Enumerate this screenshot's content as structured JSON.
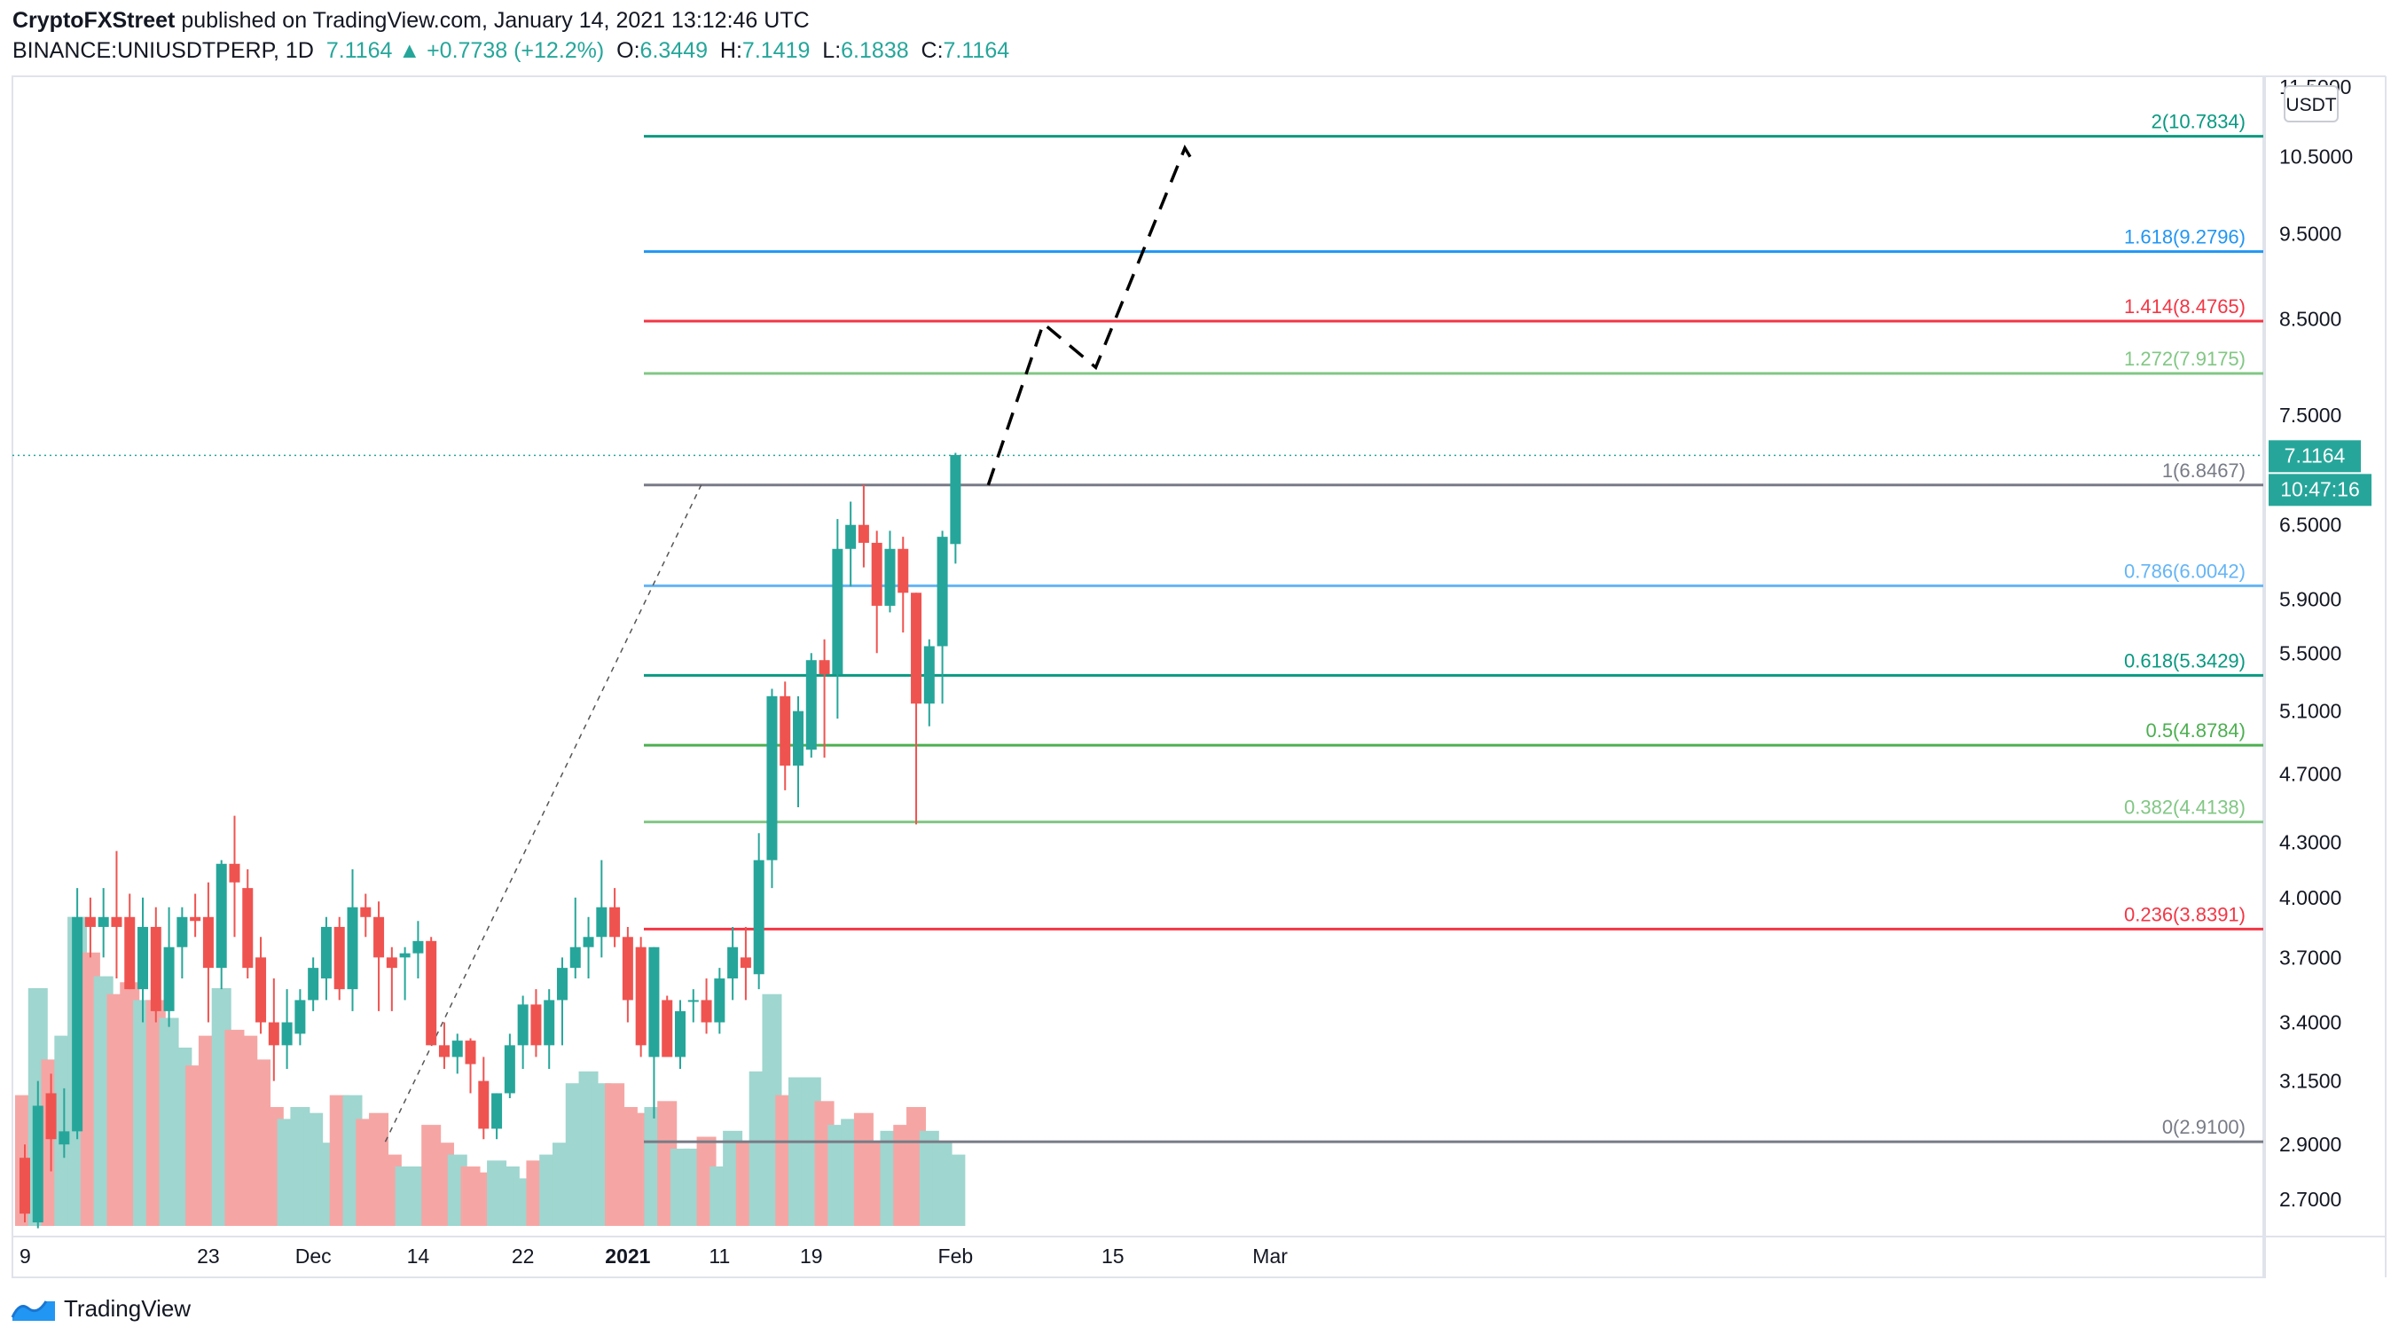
{
  "header": {
    "publisher": "CryptoFXStreet",
    "published_text": " published on TradingView.com, January 14, 2021 13:12:46 UTC",
    "symbol": "BINANCE:UNIUSDTPERP, 1D",
    "last": "7.1164",
    "change": "+0.7738 (+12.2%)",
    "o_label": "O:",
    "o_value": "6.3449",
    "h_label": "H:",
    "h_value": "7.1419",
    "l_label": "L:",
    "l_value": "6.1838",
    "c_label": "C:",
    "c_value": "7.1164"
  },
  "axis": {
    "currency": "USDT",
    "price_ticks": [
      "11.5000",
      "10.5000",
      "9.5000",
      "8.5000",
      "7.5000",
      "6.5000",
      "5.9000",
      "5.5000",
      "5.1000",
      "4.7000",
      "4.3000",
      "4.0000",
      "3.7000",
      "3.4000",
      "3.1500",
      "2.9000",
      "2.7000"
    ],
    "time_ticks": [
      "9",
      "23",
      "Dec",
      "14",
      "22",
      "2021",
      "11",
      "19",
      "Feb",
      "15",
      "Mar"
    ],
    "last_price_label": "7.1164",
    "countdown_label": "10:47:16"
  },
  "footer": {
    "brand": "TradingView"
  },
  "colors": {
    "up": "#26a69a",
    "down": "#ef5350",
    "vol_up": "#9fd6cf",
    "vol_down": "#f5a6a4",
    "grey": "#787b86",
    "blue": "#2196f3",
    "red": "#f23645",
    "lightgreen": "#81c784",
    "green": "#4caf50",
    "teal": "#089981"
  },
  "chart_data": {
    "type": "candlestick",
    "price_scale": "log",
    "ylim": [
      2.6,
      11.6
    ],
    "fib_levels": [
      {
        "label": "2(10.7834)",
        "ratio": "2",
        "price": 10.7834,
        "color": "#089981"
      },
      {
        "label": "1.618(9.2796)",
        "ratio": "1.618",
        "price": 9.2796,
        "color": "#2196f3"
      },
      {
        "label": "1.414(8.4765)",
        "ratio": "1.414",
        "price": 8.4765,
        "color": "#f23645"
      },
      {
        "label": "1.272(7.9175)",
        "ratio": "1.272",
        "price": 7.9175,
        "color": "#81c784"
      },
      {
        "label": "1(6.8467)",
        "ratio": "1",
        "price": 6.8467,
        "color": "#787b86"
      },
      {
        "label": "0.786(6.0042)",
        "ratio": "0.786",
        "price": 6.0042,
        "color": "#64b5f6"
      },
      {
        "label": "0.618(5.3429)",
        "ratio": "0.618",
        "price": 5.3429,
        "color": "#089981"
      },
      {
        "label": "0.5(4.8784)",
        "ratio": "0.5",
        "price": 4.8784,
        "color": "#4caf50"
      },
      {
        "label": "0.382(4.4138)",
        "ratio": "0.382",
        "price": 4.4138,
        "color": "#81c784"
      },
      {
        "label": "0.236(3.8391)",
        "ratio": "0.236",
        "price": 3.8391,
        "color": "#f23645"
      },
      {
        "label": "0(2.9100)",
        "ratio": "0",
        "price": 2.91,
        "color": "#787b86"
      }
    ],
    "candles": [
      {
        "o": 2.85,
        "h": 2.9,
        "l": 2.62,
        "c": 2.65
      },
      {
        "o": 2.62,
        "h": 3.15,
        "l": 2.6,
        "c": 3.05
      },
      {
        "o": 3.1,
        "h": 3.18,
        "l": 2.8,
        "c": 2.92
      },
      {
        "o": 2.9,
        "h": 3.12,
        "l": 2.85,
        "c": 2.95
      },
      {
        "o": 2.95,
        "h": 4.05,
        "l": 2.92,
        "c": 3.9
      },
      {
        "o": 3.9,
        "h": 4.0,
        "l": 3.7,
        "c": 3.85
      },
      {
        "o": 3.85,
        "h": 4.05,
        "l": 3.7,
        "c": 3.9
      },
      {
        "o": 3.9,
        "h": 4.25,
        "l": 3.6,
        "c": 3.85
      },
      {
        "o": 3.9,
        "h": 4.02,
        "l": 3.55,
        "c": 3.55
      },
      {
        "o": 3.55,
        "h": 4.0,
        "l": 3.4,
        "c": 3.85
      },
      {
        "o": 3.85,
        "h": 3.95,
        "l": 3.4,
        "c": 3.45
      },
      {
        "o": 3.45,
        "h": 3.95,
        "l": 3.38,
        "c": 3.75
      },
      {
        "o": 3.75,
        "h": 3.95,
        "l": 3.6,
        "c": 3.9
      },
      {
        "o": 3.9,
        "h": 4.02,
        "l": 3.8,
        "c": 3.88
      },
      {
        "o": 3.9,
        "h": 4.08,
        "l": 3.4,
        "c": 3.65
      },
      {
        "o": 3.65,
        "h": 4.2,
        "l": 3.55,
        "c": 4.18
      },
      {
        "o": 4.18,
        "h": 4.45,
        "l": 3.8,
        "c": 4.08
      },
      {
        "o": 4.05,
        "h": 4.15,
        "l": 3.6,
        "c": 3.65
      },
      {
        "o": 3.7,
        "h": 3.8,
        "l": 3.35,
        "c": 3.4
      },
      {
        "o": 3.4,
        "h": 3.6,
        "l": 3.15,
        "c": 3.3
      },
      {
        "o": 3.3,
        "h": 3.55,
        "l": 3.2,
        "c": 3.4
      },
      {
        "o": 3.35,
        "h": 3.55,
        "l": 3.3,
        "c": 3.5
      },
      {
        "o": 3.5,
        "h": 3.7,
        "l": 3.45,
        "c": 3.65
      },
      {
        "o": 3.6,
        "h": 3.9,
        "l": 3.5,
        "c": 3.85
      },
      {
        "o": 3.85,
        "h": 3.9,
        "l": 3.5,
        "c": 3.55
      },
      {
        "o": 3.55,
        "h": 4.15,
        "l": 3.45,
        "c": 3.95
      },
      {
        "o": 3.95,
        "h": 4.02,
        "l": 3.8,
        "c": 3.9
      },
      {
        "o": 3.9,
        "h": 3.98,
        "l": 3.45,
        "c": 3.7
      },
      {
        "o": 3.7,
        "h": 3.75,
        "l": 3.45,
        "c": 3.65
      },
      {
        "o": 3.7,
        "h": 3.75,
        "l": 3.5,
        "c": 3.72
      },
      {
        "o": 3.72,
        "h": 3.88,
        "l": 3.6,
        "c": 3.78
      },
      {
        "o": 3.78,
        "h": 3.8,
        "l": 3.3,
        "c": 3.3
      },
      {
        "o": 3.3,
        "h": 3.4,
        "l": 3.2,
        "c": 3.25
      },
      {
        "o": 3.25,
        "h": 3.35,
        "l": 3.18,
        "c": 3.32
      },
      {
        "o": 3.32,
        "h": 3.33,
        "l": 3.1,
        "c": 3.22
      },
      {
        "o": 3.15,
        "h": 3.25,
        "l": 2.92,
        "c": 2.96
      },
      {
        "o": 2.96,
        "h": 3.1,
        "l": 2.92,
        "c": 3.1
      },
      {
        "o": 3.1,
        "h": 3.35,
        "l": 3.08,
        "c": 3.3
      },
      {
        "o": 3.3,
        "h": 3.52,
        "l": 3.2,
        "c": 3.48
      },
      {
        "o": 3.48,
        "h": 3.55,
        "l": 3.25,
        "c": 3.3
      },
      {
        "o": 3.3,
        "h": 3.55,
        "l": 3.2,
        "c": 3.5
      },
      {
        "o": 3.5,
        "h": 3.7,
        "l": 3.3,
        "c": 3.65
      },
      {
        "o": 3.65,
        "h": 4.0,
        "l": 3.6,
        "c": 3.75
      },
      {
        "o": 3.75,
        "h": 3.9,
        "l": 3.6,
        "c": 3.8
      },
      {
        "o": 3.8,
        "h": 4.2,
        "l": 3.7,
        "c": 3.95
      },
      {
        "o": 3.95,
        "h": 4.05,
        "l": 3.75,
        "c": 3.8
      },
      {
        "o": 3.8,
        "h": 3.85,
        "l": 3.4,
        "c": 3.5
      },
      {
        "o": 3.75,
        "h": 3.8,
        "l": 3.25,
        "c": 3.3
      },
      {
        "o": 3.25,
        "h": 3.75,
        "l": 3.0,
        "c": 3.75
      },
      {
        "o": 3.5,
        "h": 3.52,
        "l": 3.25,
        "c": 3.25
      },
      {
        "o": 3.25,
        "h": 3.5,
        "l": 3.2,
        "c": 3.45
      },
      {
        "o": 3.5,
        "h": 3.55,
        "l": 3.4,
        "c": 3.5
      },
      {
        "o": 3.5,
        "h": 3.6,
        "l": 3.35,
        "c": 3.4
      },
      {
        "o": 3.4,
        "h": 3.65,
        "l": 3.35,
        "c": 3.6
      },
      {
        "o": 3.6,
        "h": 3.85,
        "l": 3.5,
        "c": 3.75
      },
      {
        "o": 3.7,
        "h": 3.85,
        "l": 3.5,
        "c": 3.65
      },
      {
        "o": 3.62,
        "h": 4.35,
        "l": 3.55,
        "c": 4.2
      },
      {
        "o": 4.2,
        "h": 5.25,
        "l": 4.05,
        "c": 5.2
      },
      {
        "o": 5.2,
        "h": 5.3,
        "l": 4.6,
        "c": 4.75
      },
      {
        "o": 4.75,
        "h": 5.2,
        "l": 4.5,
        "c": 5.1
      },
      {
        "o": 4.85,
        "h": 5.5,
        "l": 4.8,
        "c": 5.45
      },
      {
        "o": 5.45,
        "h": 5.6,
        "l": 4.8,
        "c": 5.35
      },
      {
        "o": 5.35,
        "h": 6.55,
        "l": 5.05,
        "c": 6.3
      },
      {
        "o": 6.3,
        "h": 6.7,
        "l": 6.0,
        "c": 6.5
      },
      {
        "o": 6.5,
        "h": 6.85,
        "l": 6.15,
        "c": 6.35
      },
      {
        "o": 6.35,
        "h": 6.45,
        "l": 5.5,
        "c": 5.85
      },
      {
        "o": 5.85,
        "h": 6.45,
        "l": 5.8,
        "c": 6.3
      },
      {
        "o": 6.3,
        "h": 6.4,
        "l": 5.65,
        "c": 5.95
      },
      {
        "o": 5.95,
        "h": 5.95,
        "l": 4.4,
        "c": 5.15
      },
      {
        "o": 5.15,
        "h": 5.6,
        "l": 5.0,
        "c": 5.55
      },
      {
        "o": 5.55,
        "h": 6.45,
        "l": 5.15,
        "c": 6.4
      },
      {
        "o": 6.34,
        "h": 7.14,
        "l": 6.18,
        "c": 7.12
      }
    ],
    "volume": [
      22,
      40,
      28,
      32,
      52,
      46,
      42,
      39,
      41,
      38,
      38,
      35,
      30,
      27,
      32,
      40,
      33,
      32,
      28,
      20,
      18,
      20,
      19,
      14,
      22,
      22,
      18,
      19,
      12,
      10,
      10,
      17,
      14,
      12,
      10,
      9,
      11,
      10,
      8,
      11,
      12,
      14,
      24,
      26,
      24,
      24,
      20,
      19,
      20,
      21,
      13,
      13,
      15,
      10,
      16,
      14,
      26,
      39,
      22,
      25,
      25,
      21,
      17,
      18,
      19,
      14,
      16,
      17,
      20,
      16,
      14,
      12
    ],
    "projection_path": [
      {
        "t": 73.5,
        "p": 6.8467
      },
      {
        "t": 77.7,
        "p": 8.45
      },
      {
        "t": 81.7,
        "p": 7.98
      },
      {
        "t": 88.5,
        "p": 10.62
      },
      {
        "t": 88.9,
        "p": 10.5
      }
    ],
    "last_price": 7.1164
  }
}
